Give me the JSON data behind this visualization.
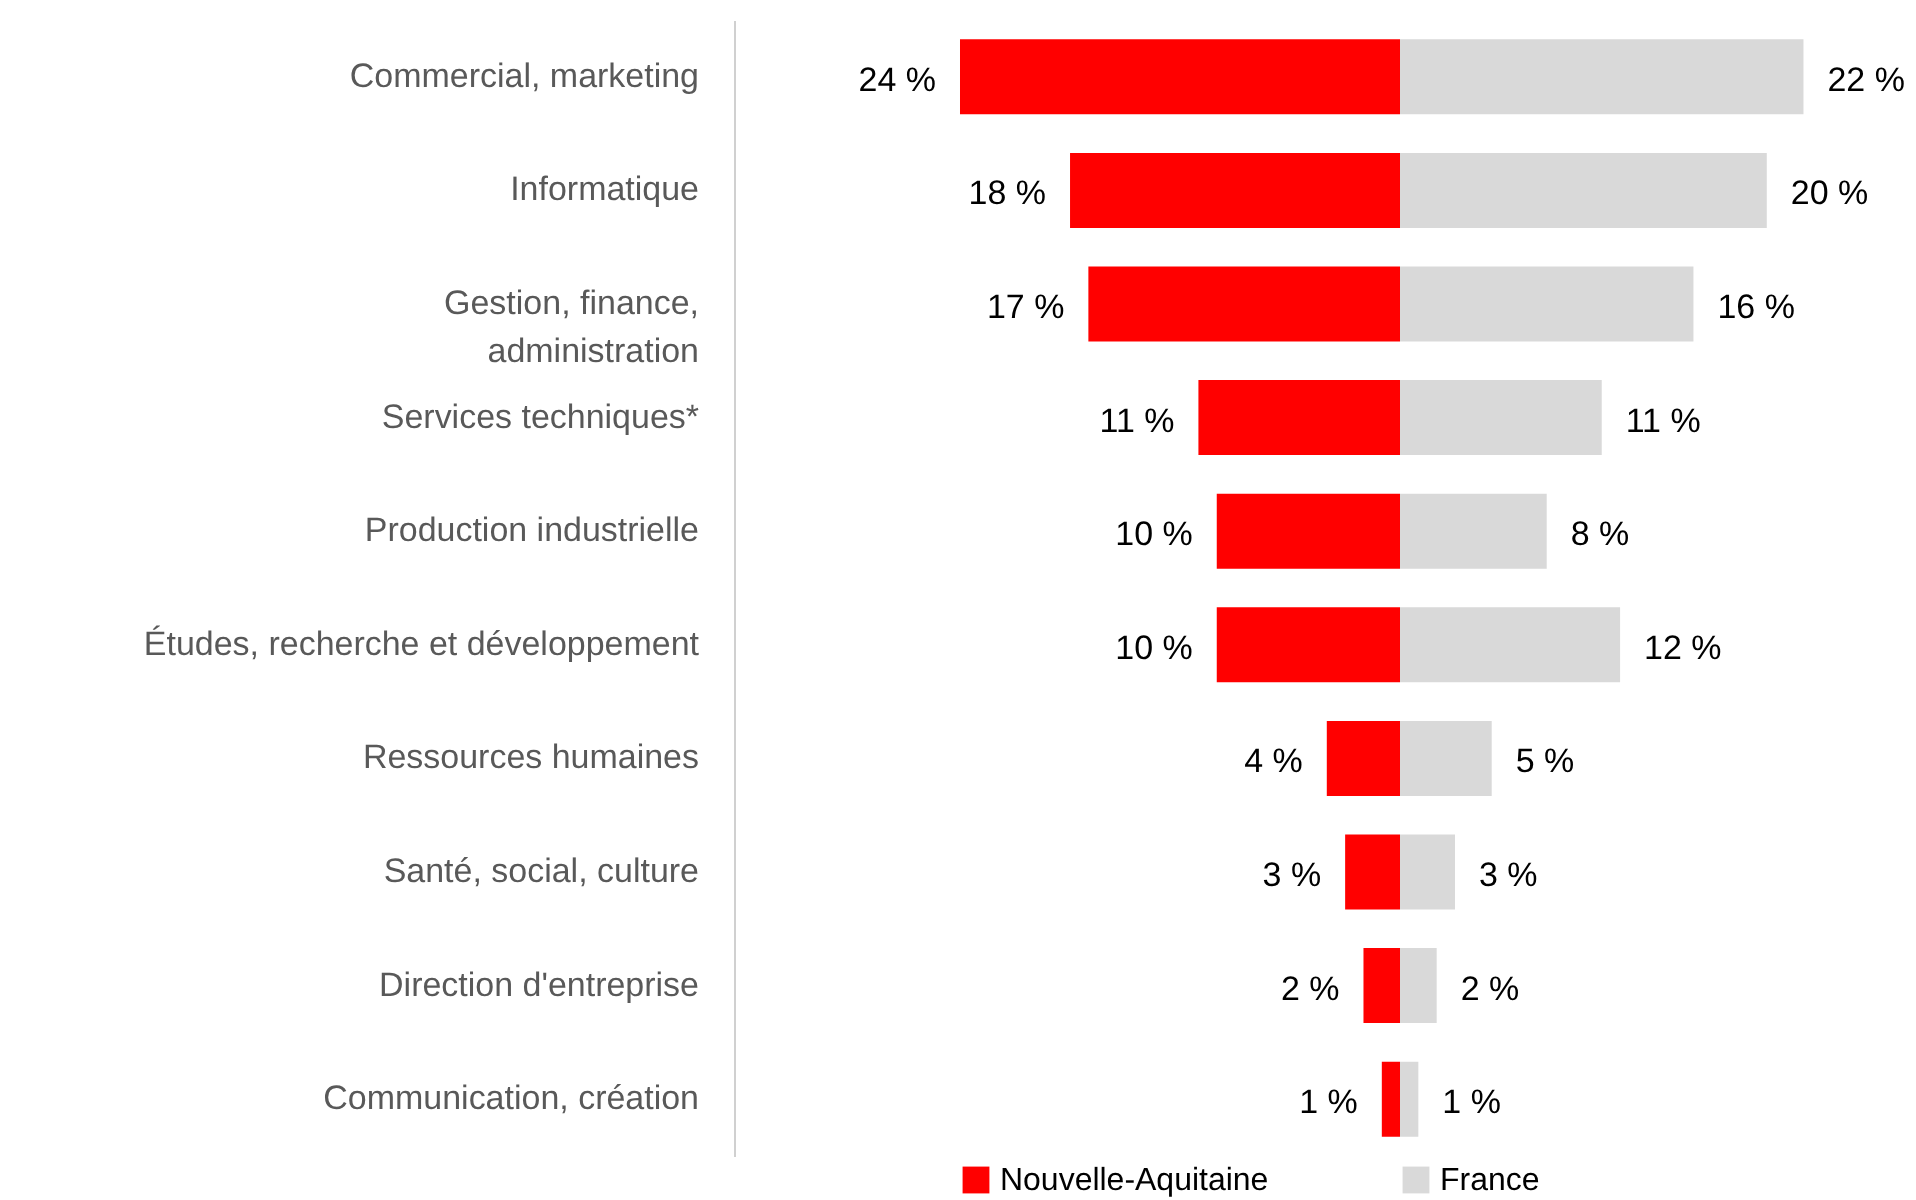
{
  "chart_data": [
    {
      "type": "bar",
      "orientation": "horizontal",
      "tick_labels": "y",
      "legend": "bottom",
      "xlim": [
        24,
        0
      ],
      "categories": [
        "Commercial, marketing",
        "Informatique",
        "Gestion, finance,\nadministration",
        "Services techniques*",
        "Production industrielle",
        "Études, recherche et développement",
        "Ressources humaines",
        "Santé, social, culture",
        "Direction d'entreprise",
        "Communication, création"
      ],
      "series": [
        {
          "name": "Nouvelle-Aquitaine",
          "color": "#ff0000",
          "values": [
            24,
            18,
            17,
            11,
            10,
            10,
            4,
            3,
            2,
            1
          ],
          "value_labels": [
            "24 %",
            "18 %",
            "17 %",
            "11 %",
            "10 %",
            "10 %",
            "4 %",
            "3 %",
            "2 %",
            "1 %"
          ]
        }
      ]
    },
    {
      "type": "bar",
      "orientation": "horizontal",
      "tick_labels": false,
      "legend": "bottom",
      "xlim": [
        0,
        22
      ],
      "categories": [
        null,
        null,
        null,
        null,
        null,
        null,
        null,
        null,
        null,
        null
      ],
      "series": [
        {
          "name": "France",
          "color": "#d9d9d9",
          "values": [
            22,
            20,
            16,
            11,
            8,
            12,
            5,
            3,
            2,
            1
          ],
          "value_labels": [
            "22 %",
            "20 %",
            "16 %",
            "11 %",
            "8 %",
            "12 %",
            "5 %",
            "3 %",
            "2 %",
            "1 %"
          ]
        }
      ]
    }
  ]
}
